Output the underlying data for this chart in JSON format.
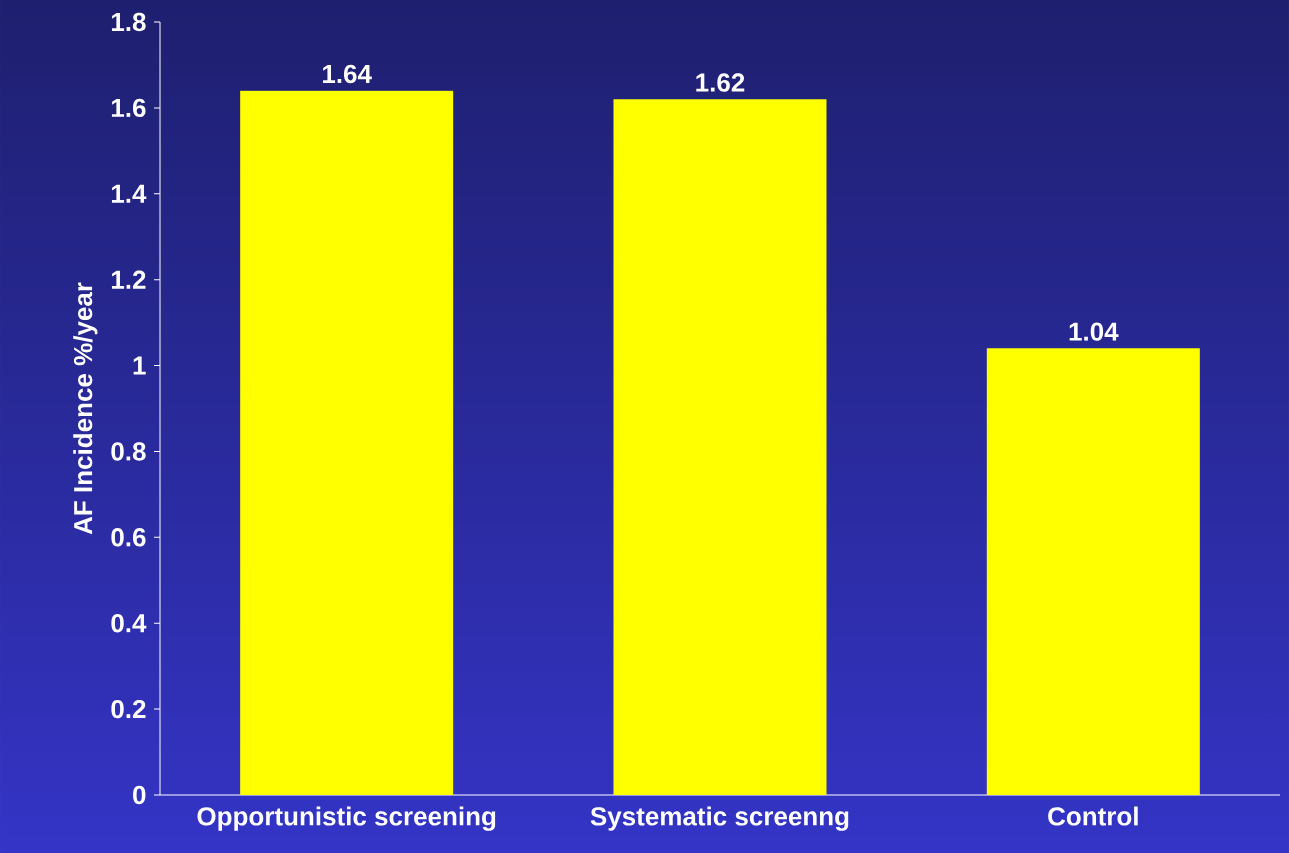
{
  "chart_data": {
    "type": "bar",
    "ylabel": "AF Incidence %/year",
    "categories": [
      "Opportunistic screening",
      "Systematic screenng",
      "Control"
    ],
    "values": [
      1.64,
      1.62,
      1.04
    ],
    "color": "#ffff00",
    "ylim": [
      0,
      1.8
    ],
    "yticks": [
      0,
      0.2,
      0.4,
      0.6,
      0.8,
      1,
      1.2,
      1.4,
      1.6,
      1.8
    ],
    "data_labels": true
  }
}
